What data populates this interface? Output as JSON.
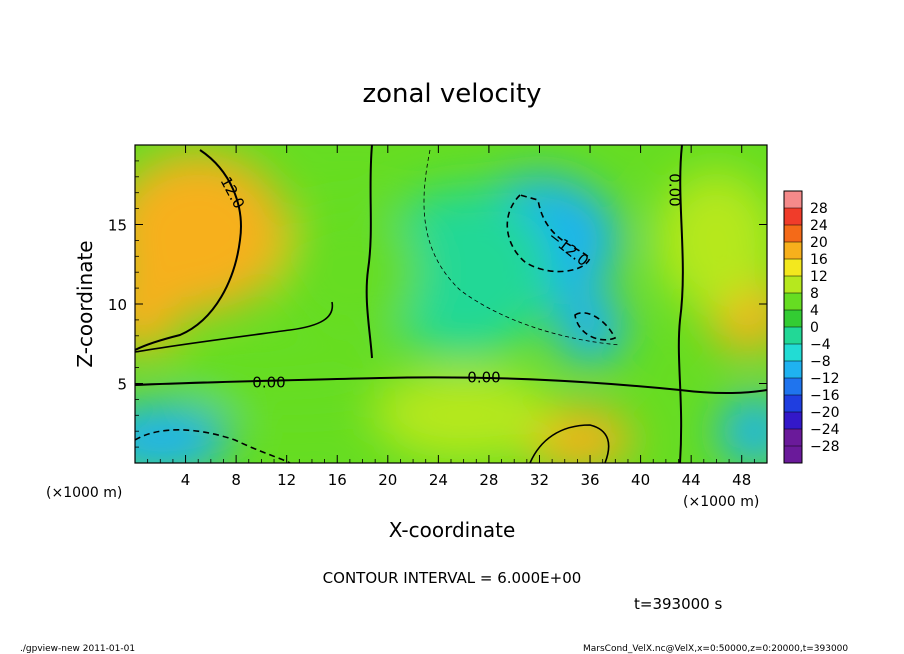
{
  "chart_data": {
    "type": "heatmap",
    "title": "zonal velocity",
    "xlabel": "X-coordinate",
    "ylabel": "Z-coordinate",
    "x_unit_label": "(×1000 m)",
    "y_unit_label": "(×1000 m)",
    "xlim": [
      0,
      50
    ],
    "ylim": [
      0,
      20
    ],
    "x_ticks": [
      4,
      8,
      12,
      16,
      20,
      24,
      28,
      32,
      36,
      40,
      44,
      48
    ],
    "x_tick_labels": [
      "4",
      "8",
      "12",
      "16",
      "20",
      "24",
      "28",
      "32",
      "36",
      "40",
      "44",
      "48"
    ],
    "y_ticks": [
      5,
      10,
      15
    ],
    "y_tick_labels": [
      "5",
      "10",
      "15"
    ],
    "colorbar": {
      "levels": [
        28,
        24,
        20,
        16,
        12,
        8,
        4,
        0,
        -4,
        -8,
        -12,
        -16,
        -20,
        -24,
        -28
      ],
      "labels": [
        "28",
        "24",
        "20",
        "16",
        "12",
        "8",
        "4",
        "0",
        "−4",
        "−8",
        "−12",
        "−16",
        "−20",
        "−24",
        "−28"
      ]
    },
    "contour_labels": [
      "12.0",
      "0.00",
      "0.00",
      "−12.0",
      "0.00"
    ],
    "regions": [
      {
        "x": 5,
        "z": 14.5,
        "value": 17
      },
      {
        "x": 0.5,
        "z": 9.5,
        "value": 15
      },
      {
        "x": 48.5,
        "z": 9.5,
        "value": 15
      },
      {
        "x": 35,
        "z": 1.5,
        "value": 16
      },
      {
        "x": 32,
        "z": 14,
        "value": -11
      },
      {
        "x": 36,
        "z": 8.5,
        "value": -12
      },
      {
        "x": 2,
        "z": 1.5,
        "value": -14
      },
      {
        "x": 49,
        "z": 2,
        "value": -14
      },
      {
        "x": 26,
        "z": 12,
        "value": -4
      },
      {
        "x": 17,
        "z": 12,
        "value": 2
      },
      {
        "x": 12,
        "z": 5,
        "value": 5
      },
      {
        "x": 26,
        "z": 3,
        "value": 8
      },
      {
        "x": 46,
        "z": 14,
        "value": 9
      }
    ]
  },
  "footer": {
    "contour_interval": "CONTOUR INTERVAL = 6.000E+00",
    "time": "t=393000 s",
    "program": "./gpview-new  2011-01-01",
    "source": "MarsCond_VelX.nc@VelX,x=0:50000,z=0:20000,t=393000"
  }
}
